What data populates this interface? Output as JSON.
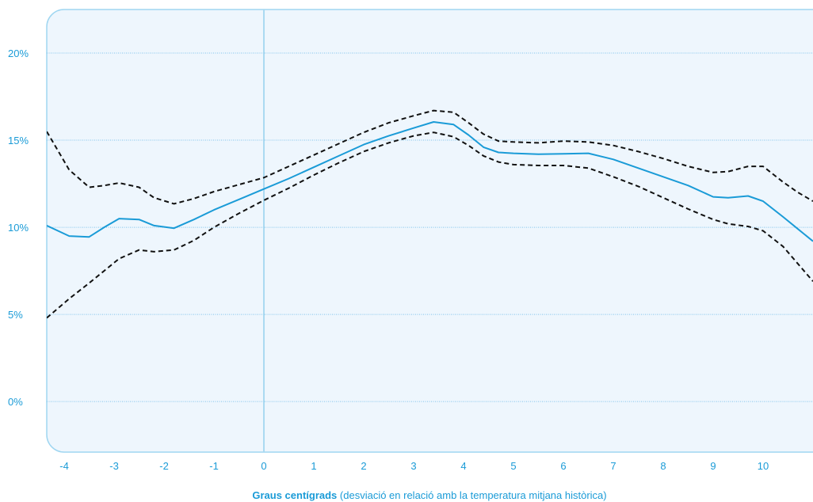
{
  "chart_data": {
    "type": "line",
    "title": "",
    "xlabel_bold": "Graus centígrads",
    "xlabel_rest": " (desviació en relació amb la temperatura mitjana històrica)",
    "ylabel": "",
    "xlim": [
      -4.35,
      11.0
    ],
    "ylim": [
      -2.9,
      22.5
    ],
    "x_ticks": [
      -4,
      -3,
      -2,
      -1,
      0,
      1,
      2,
      3,
      4,
      5,
      6,
      7,
      8,
      9,
      10
    ],
    "x_tick_labels": [
      "-4",
      "-3",
      "-2",
      "-1",
      "0",
      "1",
      "2",
      "3",
      "4",
      "5",
      "6",
      "7",
      "8",
      "9",
      "10"
    ],
    "y_ticks": [
      0,
      5,
      10,
      15,
      20
    ],
    "y_tick_labels": [
      "0%",
      "5%",
      "10%",
      "15%",
      "20%"
    ],
    "grid": "horizontal-dotted",
    "reference_line_x": 0,
    "colors": {
      "plot_bg": "#eef6fd",
      "plot_border": "#9fd6f1",
      "estimate": "#1a9bd7",
      "bounds": "#111111",
      "grid": "#7ec3ea",
      "reference": "#a9d9f2"
    },
    "series": [
      {
        "style": "solid",
        "x": [
          -4.35,
          -3.9,
          -3.5,
          -3.2,
          -2.9,
          -2.5,
          -2.2,
          -1.8,
          -1.4,
          -1,
          -0.5,
          0,
          0.5,
          1,
          1.5,
          2,
          2.5,
          3,
          3.4,
          3.8,
          4.1,
          4.4,
          4.7,
          5,
          5.5,
          6,
          6.5,
          7,
          7.5,
          8,
          8.5,
          9,
          9.3,
          9.7,
          10,
          10.4,
          10.7,
          11
        ],
        "values": [
          10.1,
          9.5,
          9.45,
          10.0,
          10.5,
          10.45,
          10.1,
          9.95,
          10.45,
          11.0,
          11.6,
          12.2,
          12.8,
          13.45,
          14.1,
          14.75,
          15.25,
          15.7,
          16.05,
          15.9,
          15.3,
          14.6,
          14.3,
          14.25,
          14.2,
          14.22,
          14.25,
          13.9,
          13.4,
          12.9,
          12.4,
          11.75,
          11.7,
          11.8,
          11.5,
          10.6,
          9.9,
          9.2
        ]
      },
      {
        "style": "dashed",
        "x": [
          -4.35,
          -3.9,
          -3.5,
          -3.2,
          -2.9,
          -2.5,
          -2.2,
          -1.8,
          -1.4,
          -1,
          -0.5,
          0,
          0.5,
          1,
          1.5,
          2,
          2.5,
          3,
          3.4,
          3.8,
          4.1,
          4.4,
          4.7,
          5,
          5.5,
          6,
          6.5,
          7,
          7.5,
          8,
          8.5,
          9,
          9.3,
          9.7,
          10,
          10.4,
          10.7,
          11
        ],
        "values": [
          15.5,
          13.3,
          12.3,
          12.4,
          12.55,
          12.3,
          11.7,
          11.35,
          11.65,
          12.05,
          12.45,
          12.85,
          13.5,
          14.15,
          14.8,
          15.45,
          16.0,
          16.4,
          16.7,
          16.6,
          16.0,
          15.35,
          14.95,
          14.9,
          14.85,
          14.95,
          14.9,
          14.7,
          14.35,
          13.95,
          13.5,
          13.15,
          13.2,
          13.5,
          13.5,
          12.6,
          12.0,
          11.5
        ]
      },
      {
        "style": "dashed",
        "x": [
          -4.35,
          -3.9,
          -3.5,
          -3.2,
          -2.9,
          -2.5,
          -2.2,
          -1.8,
          -1.4,
          -1,
          -0.5,
          0,
          0.5,
          1,
          1.5,
          2,
          2.5,
          3,
          3.4,
          3.8,
          4.1,
          4.4,
          4.7,
          5,
          5.5,
          6,
          6.5,
          7,
          7.5,
          8,
          8.5,
          9,
          9.3,
          9.7,
          10,
          10.4,
          10.7,
          11
        ],
        "values": [
          4.8,
          5.9,
          6.8,
          7.5,
          8.2,
          8.7,
          8.6,
          8.7,
          9.25,
          10.0,
          10.8,
          11.55,
          12.25,
          13.0,
          13.7,
          14.35,
          14.85,
          15.25,
          15.45,
          15.2,
          14.7,
          14.1,
          13.75,
          13.6,
          13.55,
          13.55,
          13.4,
          12.9,
          12.35,
          11.7,
          11.05,
          10.45,
          10.2,
          10.05,
          9.8,
          8.9,
          7.9,
          6.9
        ]
      }
    ]
  }
}
